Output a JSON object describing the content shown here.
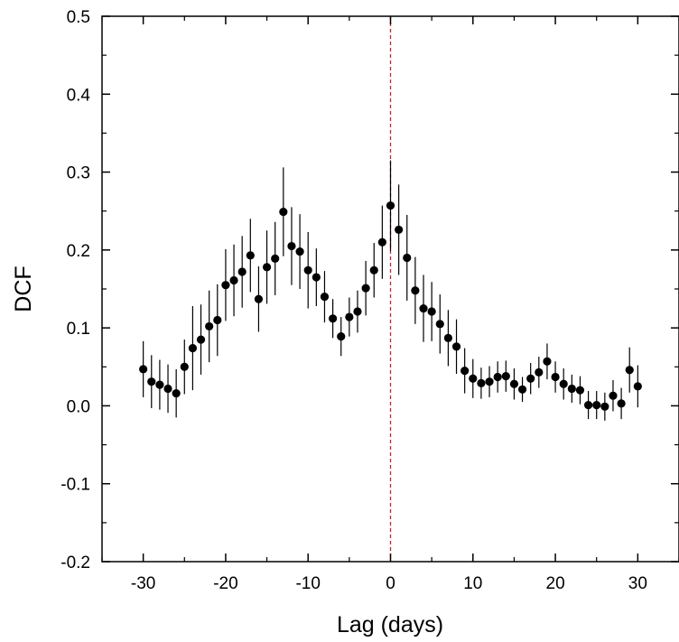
{
  "chart_data": {
    "type": "scatter",
    "title": "",
    "xlabel": "Lag (days)",
    "ylabel": "DCF",
    "xlim": [
      -35,
      35
    ],
    "ylim": [
      -0.2,
      0.5
    ],
    "x_ticks": [
      -30,
      -20,
      -10,
      0,
      10,
      20,
      30
    ],
    "x_tick_labels": [
      "-30",
      "-20",
      "-10",
      "0",
      "10",
      "20",
      "30"
    ],
    "y_ticks": [
      -0.2,
      -0.1,
      0.0,
      0.1,
      0.2,
      0.3,
      0.4,
      0.5
    ],
    "y_tick_labels": [
      "-0.2",
      "-0.1",
      "0.0",
      "0.1",
      "0.2",
      "0.3",
      "0.4",
      "0.5"
    ],
    "grid": false,
    "legend": "none",
    "reference_line": {
      "x": 0,
      "color": "#cc2222",
      "style": "dashed"
    },
    "marker_color": "#000000",
    "series": [
      {
        "x": [
          -30,
          -29,
          -28,
          -27,
          -26,
          -25,
          -24,
          -23,
          -22,
          -21,
          -20,
          -19,
          -18,
          -17,
          -16,
          -15,
          -14,
          -13,
          -12,
          -11,
          -10,
          -9,
          -8,
          -7,
          -6,
          -5,
          -4,
          -3,
          -2,
          -1,
          0,
          1,
          2,
          3,
          4,
          5,
          6,
          7,
          8,
          9,
          10,
          11,
          12,
          13,
          14,
          15,
          16,
          17,
          18,
          19,
          20,
          21,
          22,
          23,
          24,
          25,
          26,
          27,
          28,
          29,
          30
        ],
        "y": [
          0.047,
          0.031,
          0.027,
          0.022,
          0.016,
          0.05,
          0.074,
          0.085,
          0.102,
          0.11,
          0.155,
          0.161,
          0.172,
          0.193,
          0.137,
          0.178,
          0.189,
          0.249,
          0.205,
          0.198,
          0.174,
          0.165,
          0.14,
          0.112,
          0.089,
          0.114,
          0.121,
          0.151,
          0.174,
          0.21,
          0.257,
          0.226,
          0.19,
          0.148,
          0.125,
          0.121,
          0.105,
          0.087,
          0.076,
          0.045,
          0.035,
          0.029,
          0.031,
          0.037,
          0.038,
          0.028,
          0.021,
          0.035,
          0.043,
          0.057,
          0.037,
          0.028,
          0.022,
          0.02,
          0.001,
          0.001,
          -0.001,
          0.013,
          0.003,
          0.046,
          0.025
        ],
        "err": [
          0.036,
          0.034,
          0.032,
          0.031,
          0.031,
          0.035,
          0.054,
          0.045,
          0.046,
          0.046,
          0.046,
          0.046,
          0.046,
          0.047,
          0.042,
          0.047,
          0.047,
          0.057,
          0.05,
          0.048,
          0.049,
          0.037,
          0.033,
          0.025,
          0.025,
          0.025,
          0.027,
          0.035,
          0.035,
          0.047,
          0.058,
          0.058,
          0.055,
          0.043,
          0.043,
          0.038,
          0.038,
          0.036,
          0.035,
          0.029,
          0.025,
          0.02,
          0.02,
          0.02,
          0.02,
          0.02,
          0.016,
          0.02,
          0.02,
          0.023,
          0.02,
          0.02,
          0.018,
          0.018,
          0.018,
          0.018,
          0.018,
          0.02,
          0.02,
          0.029,
          0.027
        ]
      }
    ]
  }
}
